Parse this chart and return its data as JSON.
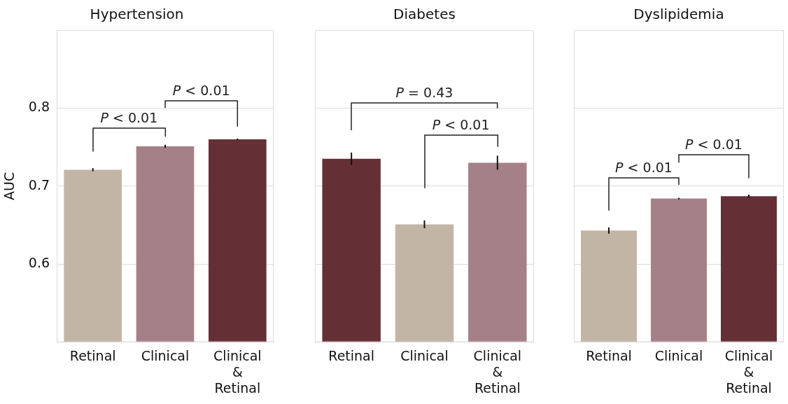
{
  "chart_data": [
    {
      "type": "bar",
      "title": "Hypertension",
      "ylabel": "AUC",
      "categories": [
        "Retinal",
        "Clinical",
        "Clinical & Retinal"
      ],
      "values": [
        0.721,
        0.751,
        0.76
      ],
      "errors": [
        0.002,
        0.002,
        0.001
      ],
      "colors": [
        "#c3b5a5",
        "#a58088",
        "#643036"
      ],
      "ylim": [
        0.5,
        0.9
      ],
      "yticks": [
        0.6,
        0.7,
        0.8
      ],
      "grid": "y",
      "annotations": [
        "P < 0.01",
        "P < 0.01"
      ]
    },
    {
      "type": "bar",
      "title": "Diabetes",
      "categories": [
        "Retinal",
        "Clinical",
        "Clinical & Retinal"
      ],
      "values": [
        0.735,
        0.651,
        0.73
      ],
      "errors": [
        0.008,
        0.005,
        0.009
      ],
      "colors": [
        "#643036",
        "#c3b5a5",
        "#a58088"
      ],
      "ylim": [
        0.5,
        0.9
      ],
      "yticks": [
        0.6,
        0.7,
        0.8
      ],
      "grid": "y",
      "tick_labels": "x",
      "annotations": [
        "P = 0.43",
        "P < 0.01"
      ]
    },
    {
      "type": "bar",
      "title": "Dyslipidemia",
      "categories": [
        "Retinal",
        "Clinical",
        "Clinical & Retinal"
      ],
      "values": [
        0.643,
        0.684,
        0.687
      ],
      "errors": [
        0.004,
        0.001,
        0.002
      ],
      "colors": [
        "#c3b5a5",
        "#a58088",
        "#643036"
      ],
      "ylim": [
        0.5,
        0.9
      ],
      "yticks": [
        0.6,
        0.7,
        0.8
      ],
      "grid": "y",
      "tick_labels": "x",
      "annotations": [
        "P < 0.01",
        "P < 0.01"
      ]
    }
  ]
}
